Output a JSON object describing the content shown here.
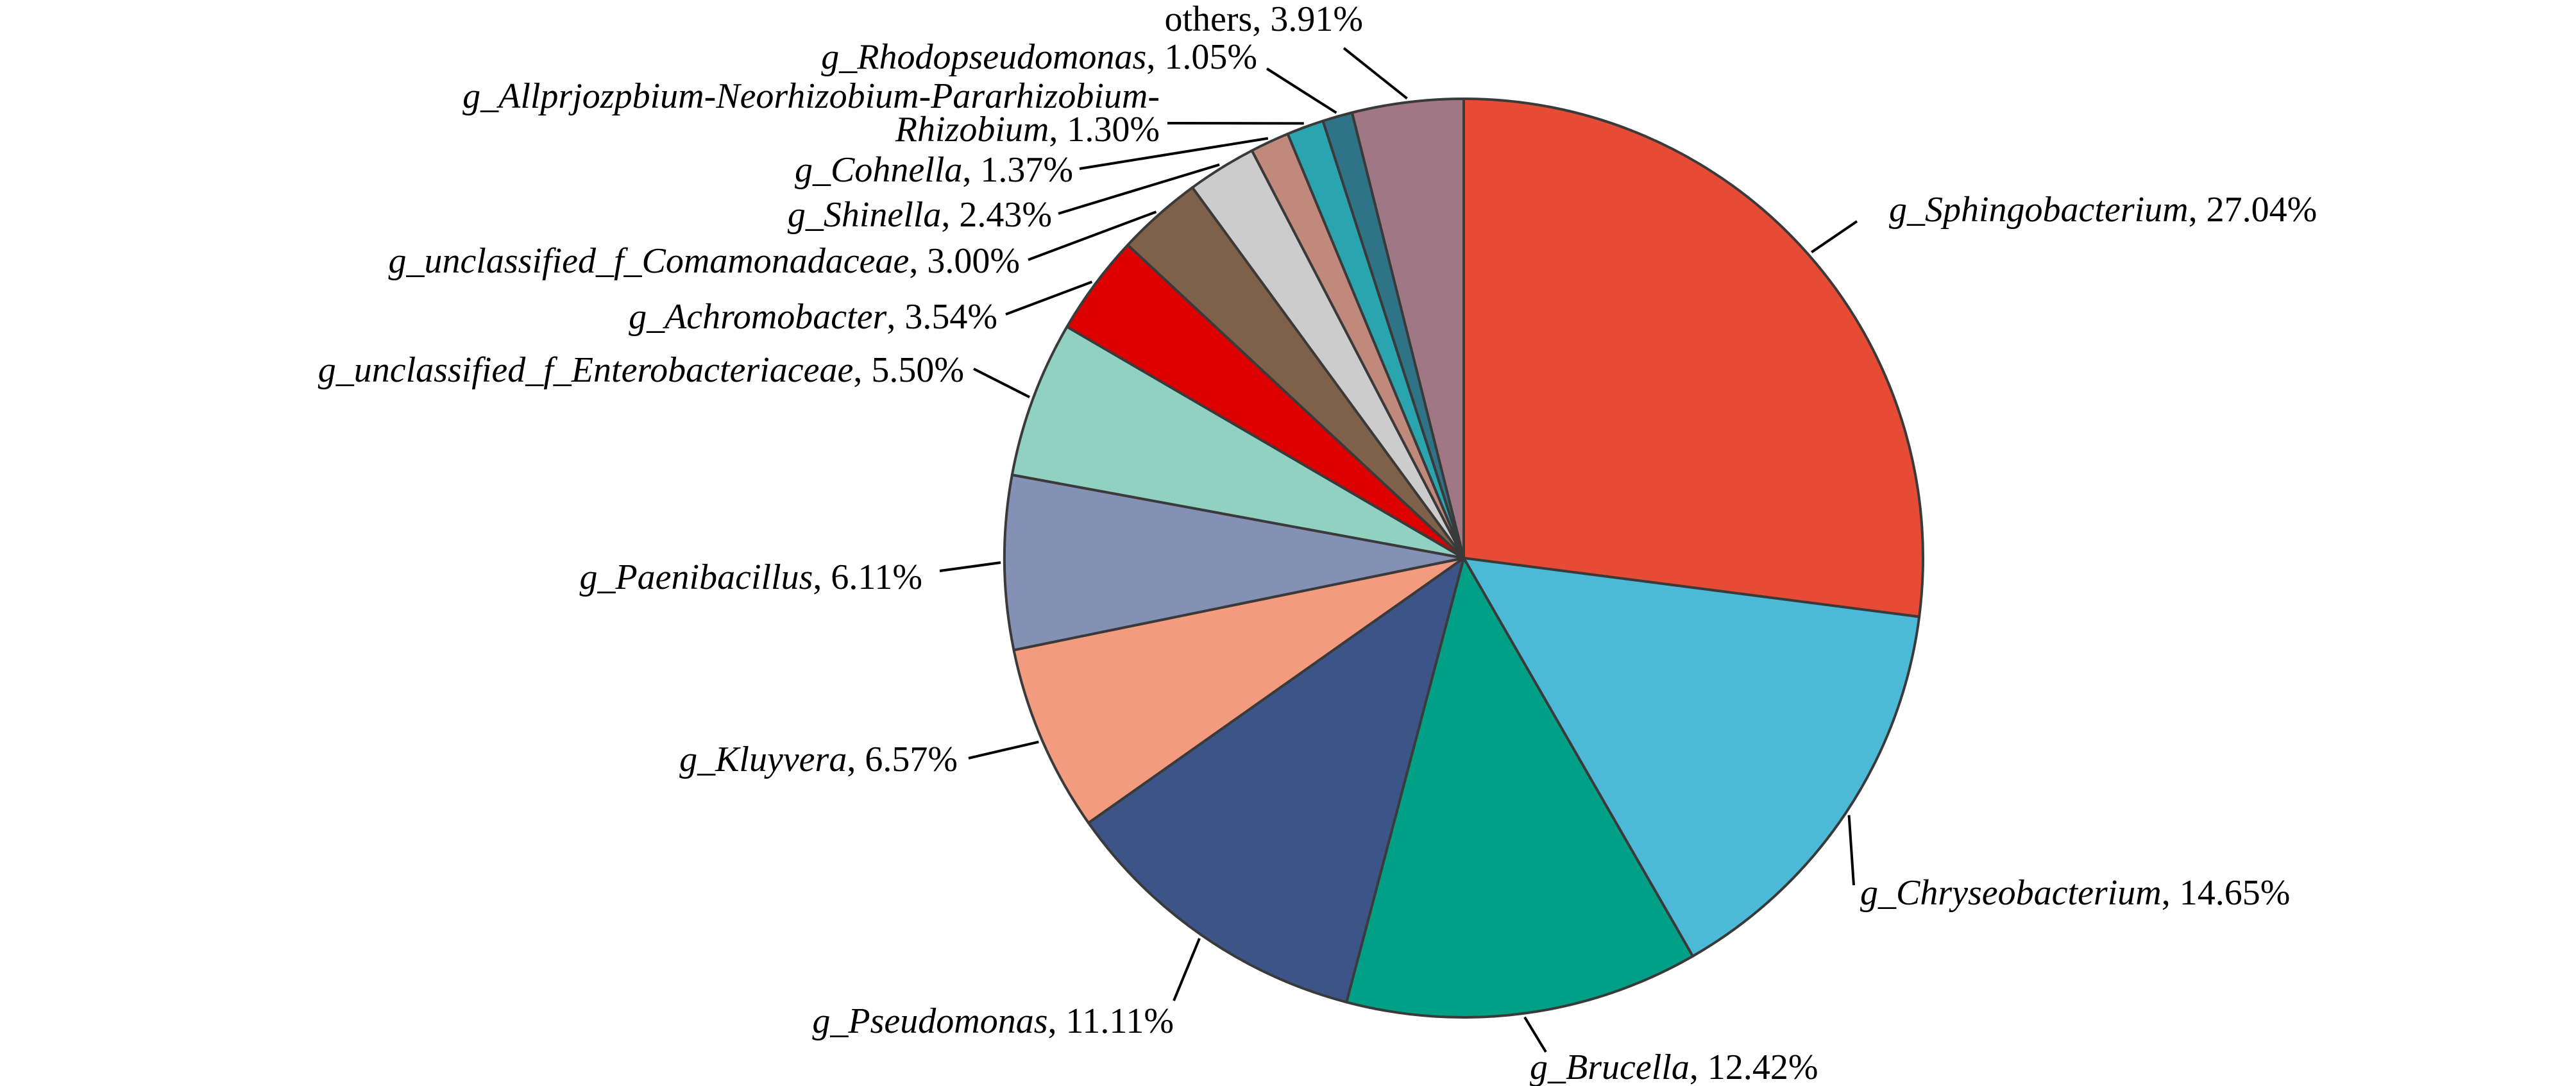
{
  "chart_data": {
    "type": "pie",
    "start": "12 o'clock",
    "direction": "clockwise",
    "slices": [
      {
        "label": "g_Sphingobacterium",
        "value": 27.04,
        "value_label": "27.04%",
        "color": "#e54b35"
      },
      {
        "label": "g_Chryseobacterium",
        "value": 14.65,
        "value_label": "14.65%",
        "color": "#4cb9d6"
      },
      {
        "label": "g_Brucella",
        "value": 12.42,
        "value_label": "12.42%",
        "color": "#00a087"
      },
      {
        "label": "g_Pseudomonas",
        "value": 11.11,
        "value_label": "11.11%",
        "color": "#3c5488"
      },
      {
        "label": "g_Kluyvera",
        "value": 6.57,
        "value_label": "6.57%",
        "color": "#f39b7f"
      },
      {
        "label": "g_Paenibacillus",
        "value": 6.11,
        "value_label": "6.11%",
        "color": "#8491b4"
      },
      {
        "label": "g_unclassified_f_Enterobacteriaceae",
        "value": 5.5,
        "value_label": "5.50%",
        "color": "#91d1c2"
      },
      {
        "label": "g_Achromobacter",
        "value": 3.54,
        "value_label": "3.54%",
        "color": "#dc0000"
      },
      {
        "label": "g_unclassified_f_Comamonadaceae",
        "value": 3.0,
        "value_label": "3.00%",
        "color": "#7e6148"
      },
      {
        "label": "g_Shinella",
        "value": 2.43,
        "value_label": "2.43%",
        "color": "#cccccc"
      },
      {
        "label": "g_Cohnella",
        "value": 1.37,
        "value_label": "1.37%",
        "color": "#c1897c"
      },
      {
        "label": "g_Allprjozpbium-Neorhizobium-Pararhizobium-Rhizobium",
        "value": 1.3,
        "value_label": "1.30%",
        "color": "#2aa5b0",
        "label_lines": [
          "g_Allprjozpbium-Neorhizobium-Pararhizobium-",
          "Rhizobium"
        ]
      },
      {
        "label": "g_Rhodopseudomonas",
        "value": 1.05,
        "value_label": "1.05%",
        "color": "#2e7386"
      },
      {
        "label": "others",
        "value": 3.91,
        "value_label": "3.91%",
        "color": "#a07885"
      }
    ]
  }
}
